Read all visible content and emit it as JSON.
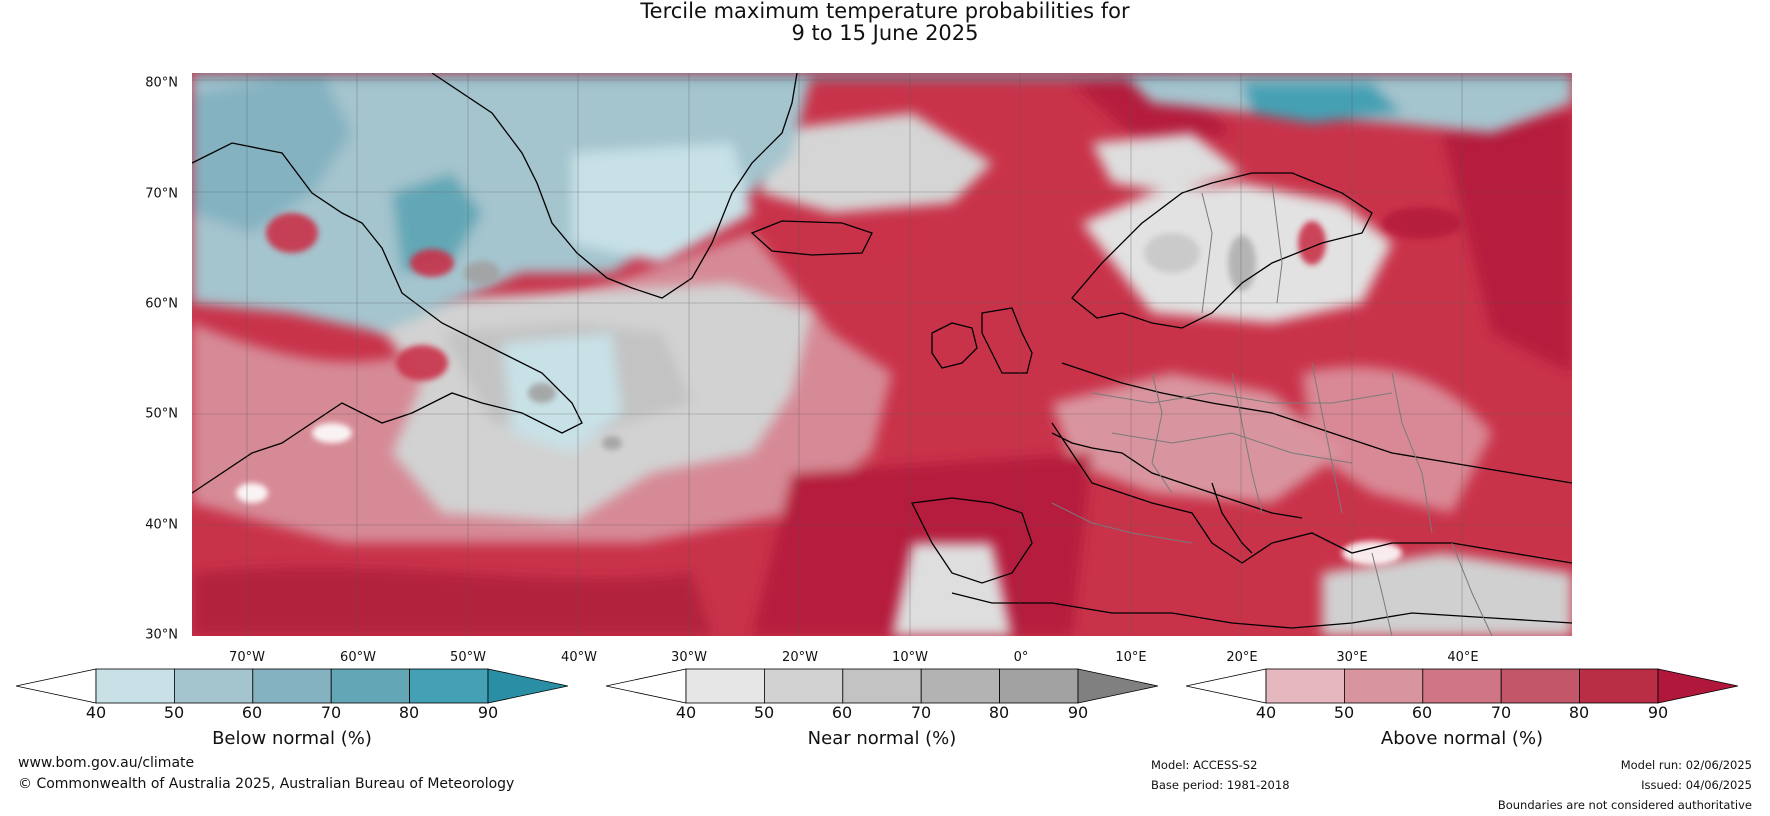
{
  "title": {
    "line1": "Tercile maximum temperature probabilities for",
    "line2": "9 to 15 June 2025"
  },
  "map": {
    "lat_labels": [
      "80°N",
      "70°N",
      "60°N",
      "50°N",
      "40°N",
      "30°N"
    ],
    "lon_labels": [
      "70°W",
      "60°W",
      "50°W",
      "40°W",
      "30°W",
      "20°W",
      "10°W",
      "0°",
      "10°E",
      "20°E",
      "30°E",
      "40°E"
    ],
    "colors": {
      "land_outline": "#000000",
      "country_borders": "#7a7a7a",
      "grid": "#555555"
    }
  },
  "colorbars": [
    {
      "title": "Below normal (%)",
      "ticks": [
        "40",
        "50",
        "60",
        "70",
        "80",
        "90"
      ],
      "colors": [
        "#ffffff",
        "#c8e1e7",
        "#a4c4ce",
        "#85b2c1",
        "#63a7b6",
        "#44a0b4",
        "#2a8fa5"
      ]
    },
    {
      "title": "Near normal (%)",
      "ticks": [
        "40",
        "50",
        "60",
        "70",
        "80",
        "90"
      ],
      "colors": [
        "#ffffff",
        "#e6e6e6",
        "#d2d2d2",
        "#c3c3c3",
        "#b3b3b3",
        "#a2a2a2",
        "#808080"
      ]
    },
    {
      "title": "Above normal (%)",
      "ticks": [
        "40",
        "50",
        "60",
        "70",
        "80",
        "90"
      ],
      "colors": [
        "#ffffff",
        "#e5b8c0",
        "#d9959f",
        "#cf7583",
        "#c4566a",
        "#b92d45",
        "#b0173a"
      ]
    }
  ],
  "footer": {
    "website": "www.bom.gov.au/climate",
    "copyright": "© Commonwealth of Australia 2025, Australian Bureau of Meteorology",
    "model": "Model: ACCESS-S2",
    "base_period": "Base period: 1981-2018",
    "model_run": "Model run: 02/06/2025",
    "issued": "Issued: 04/06/2025",
    "disclaimer": "Boundaries are not considered authoritative"
  }
}
